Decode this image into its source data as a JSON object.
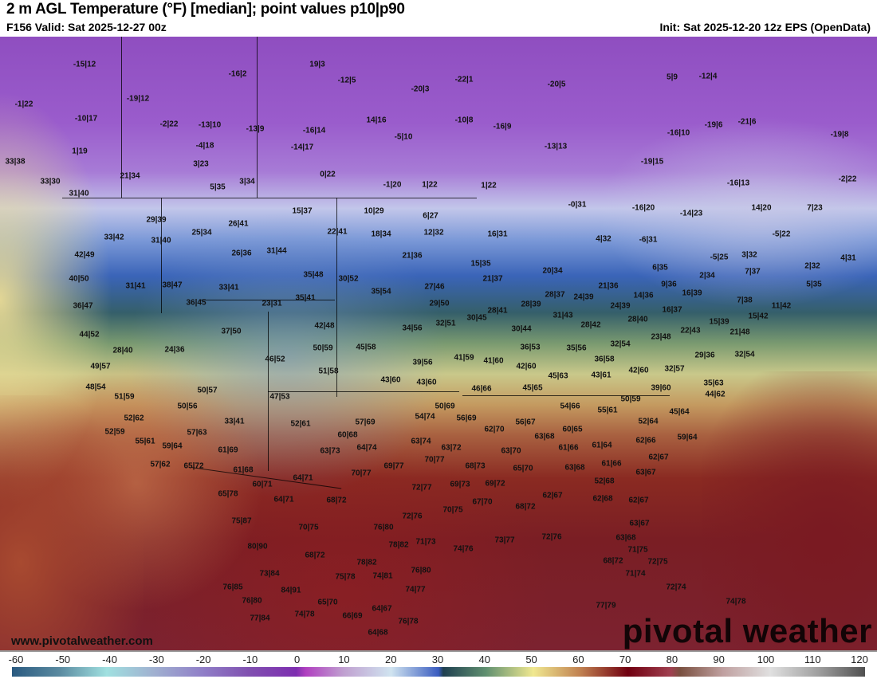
{
  "header": {
    "title": "2 m AGL Temperature (°F) [median]; point values p10|p90",
    "valid": "F156 Valid: Sat 2025-12-27 00z",
    "init": "Init: Sat 2025-12-20 12z EPS (OpenData)"
  },
  "watermark": {
    "logo": "pivotal weather",
    "url": "www.pivotalweather.com"
  },
  "colorbar": {
    "unit": "°F",
    "ticks": [
      "-60",
      "-50",
      "-40",
      "-30",
      "-20",
      "-10",
      "0",
      "10",
      "20",
      "30",
      "40",
      "50",
      "60",
      "70",
      "80",
      "90",
      "100",
      "110",
      "120"
    ],
    "stops": [
      {
        "v": -60,
        "c": "#2a5a80"
      },
      {
        "v": -50,
        "c": "#5a8aa0"
      },
      {
        "v": -40,
        "c": "#a0e0e0"
      },
      {
        "v": -30,
        "c": "#a0b0d0"
      },
      {
        "v": -20,
        "c": "#9080c8"
      },
      {
        "v": -10,
        "c": "#8050b0"
      },
      {
        "v": 0,
        "c": "#7e2eb0"
      },
      {
        "v": 2,
        "c": "#b040c0"
      },
      {
        "v": 10,
        "c": "#c0a0d0"
      },
      {
        "v": 20,
        "c": "#d0e4f0"
      },
      {
        "v": 30,
        "c": "#3a5cc0"
      },
      {
        "v": 31,
        "c": "#1f4050"
      },
      {
        "v": 40,
        "c": "#609070"
      },
      {
        "v": 50,
        "c": "#f0e890"
      },
      {
        "v": 60,
        "c": "#c08050"
      },
      {
        "v": 70,
        "c": "#700010"
      },
      {
        "v": 79,
        "c": "#a04050"
      },
      {
        "v": 81,
        "c": "#7a5040"
      },
      {
        "v": 90,
        "c": "#c0a0a0"
      },
      {
        "v": 100,
        "c": "#e0e0e0"
      },
      {
        "v": 110,
        "c": "#a0a0a0"
      },
      {
        "v": 120,
        "c": "#505050"
      }
    ]
  },
  "point_values": [
    "-15|12",
    "-16|2",
    "19|3",
    "-12|5",
    "-22|1",
    "-20|5",
    "5|9",
    "-12|4",
    "-1|22",
    "-19|12",
    "-20|3",
    "-10|17",
    "-2|22",
    "-13|10",
    "-13|9",
    "-16|14",
    "14|16",
    "-10|8",
    "-16|9",
    "-16|10",
    "-19|6",
    "-21|6",
    "-19|8",
    "-4|18",
    "-14|17",
    "-5|10",
    "-13|13",
    "1|19",
    "3|23",
    "0|22",
    "-19|15",
    "33|38",
    "21|34",
    "33|30",
    "5|35",
    "3|34",
    "-1|20",
    "1|22",
    "1|22",
    "-16|13",
    "-2|22",
    "31|40",
    "15|37",
    "10|29",
    "6|27",
    "-0|31",
    "-16|20",
    "-14|23",
    "14|20",
    "7|23",
    "29|39",
    "26|41",
    "22|41",
    "18|34",
    "12|32",
    "16|31",
    "4|32",
    "-6|31",
    "-5|22",
    "33|42",
    "31|40",
    "25|34",
    "42|49",
    "26|36",
    "31|44",
    "21|36",
    "15|35",
    "-5|25",
    "3|32",
    "2|32",
    "4|31",
    "6|35",
    "40|50",
    "35|48",
    "30|52",
    "20|34",
    "21|37",
    "21|36",
    "2|34",
    "7|37",
    "9|36",
    "5|35",
    "31|41",
    "38|47",
    "33|41",
    "27|46",
    "35|54",
    "28|37",
    "24|39",
    "14|36",
    "16|39",
    "36|47",
    "36|45",
    "23|31",
    "35|41",
    "29|50",
    "28|41",
    "28|39",
    "31|43",
    "24|39",
    "16|37",
    "7|38",
    "11|42",
    "44|52",
    "37|50",
    "42|48",
    "34|56",
    "32|51",
    "30|45",
    "30|44",
    "28|42",
    "28|40",
    "22|43",
    "15|39",
    "15|42",
    "28|40",
    "24|36",
    "50|59",
    "45|58",
    "36|53",
    "35|56",
    "32|54",
    "23|48",
    "21|48",
    "29|36",
    "32|54",
    "49|57",
    "46|52",
    "39|56",
    "41|59",
    "41|60",
    "42|60",
    "36|58",
    "48|54",
    "51|58",
    "43|60",
    "43|60",
    "45|63",
    "43|61",
    "42|60",
    "32|57",
    "35|63",
    "51|59",
    "50|57",
    "47|53",
    "46|66",
    "45|65",
    "39|60",
    "44|62",
    "50|56",
    "50|69",
    "54|66",
    "55|61",
    "50|59",
    "45|64",
    "52|62",
    "33|41",
    "52|61",
    "57|69",
    "54|74",
    "56|69",
    "56|67",
    "60|65",
    "52|64",
    "52|59",
    "57|63",
    "60|68",
    "62|70",
    "63|68",
    "59|64",
    "55|61",
    "59|64",
    "63|74",
    "63|72",
    "61|66",
    "61|64",
    "62|66",
    "57|62",
    "65|72",
    "61|69",
    "63|73",
    "64|74",
    "63|70",
    "62|67",
    "61|68",
    "70|77",
    "69|77",
    "68|73",
    "65|70",
    "63|68",
    "61|66",
    "63|67",
    "60|71",
    "64|71",
    "70|77",
    "72|77",
    "69|73",
    "69|72",
    "52|68",
    "65|78",
    "64|71",
    "68|72",
    "62|67",
    "62|68",
    "62|67",
    "67|70",
    "70|75",
    "68|72",
    "75|87",
    "72|76",
    "70|75",
    "76|80",
    "63|67",
    "71|73",
    "74|76",
    "73|77",
    "72|76",
    "63|68",
    "80|90",
    "68|72",
    "78|82",
    "71|75",
    "78|82",
    "68|72",
    "72|75",
    "73|84",
    "75|78",
    "74|81",
    "76|80",
    "71|74",
    "76|85",
    "84|91",
    "74|77",
    "72|74",
    "76|80",
    "65|70",
    "64|67",
    "74|78",
    "77|84",
    "74|78",
    "66|69",
    "76|78",
    "77|79",
    "64|68"
  ]
}
